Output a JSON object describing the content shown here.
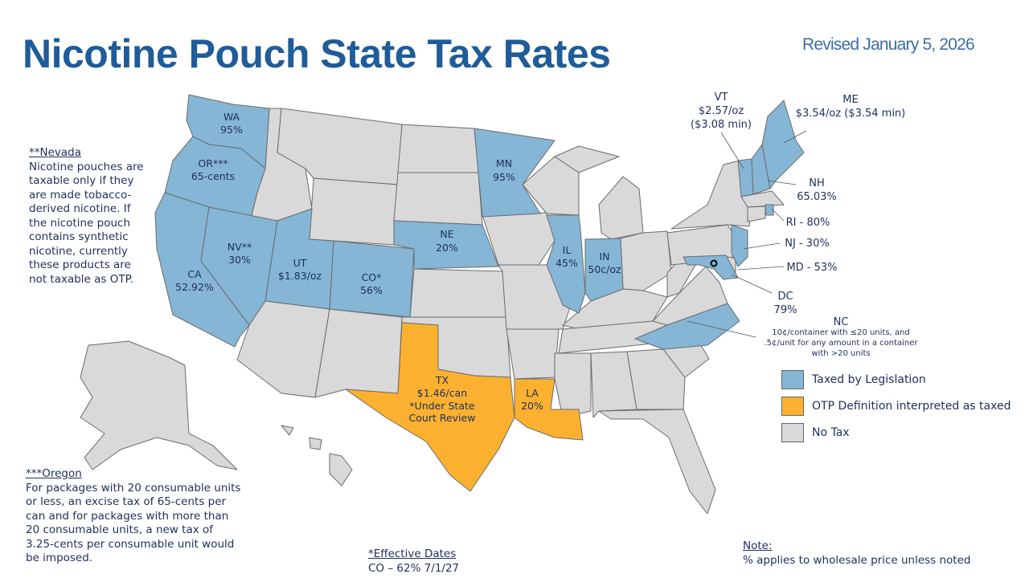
{
  "title": "Nicotine Pouch State Tax Rates",
  "revised": "Revised January 5, 2026",
  "colors": {
    "taxed": "#85b6d6",
    "otp": "#fbb12f",
    "none": "#d9d9d9",
    "title": "#1f5c99"
  },
  "states": {
    "WA": {
      "name": "WA",
      "rate": "95%"
    },
    "OR": {
      "name": "OR***",
      "rate": "65-cents"
    },
    "CA": {
      "name": "CA",
      "rate": "52.92%"
    },
    "NV": {
      "name": "NV**",
      "rate": "30%"
    },
    "UT": {
      "name": "UT",
      "rate": "$1.83/oz"
    },
    "CO": {
      "name": "CO*",
      "rate": "56%"
    },
    "NE": {
      "name": "NE",
      "rate": "20%"
    },
    "MN": {
      "name": "MN",
      "rate": "95%"
    },
    "IL": {
      "name": "IL",
      "rate": "45%"
    },
    "IN": {
      "name": "IN",
      "rate": "50c/oz"
    },
    "TX": {
      "name": "TX",
      "rate": "$1.46/can",
      "note1": "*Under State",
      "note2": "Court Review"
    },
    "LA": {
      "name": "LA",
      "rate": "20%"
    },
    "VT": {
      "name": "VT",
      "rate": "$2.57/oz",
      "min": "($3.08 min)"
    },
    "ME": {
      "name": "ME",
      "rate": "$3.54/oz ($3.54 min)"
    },
    "NH": {
      "name": "NH",
      "rate": "65.03%"
    },
    "RI": {
      "label": "RI - 80%"
    },
    "NJ": {
      "label": "NJ - 30%"
    },
    "MD": {
      "label": "MD - 53%"
    },
    "DC": {
      "name": "DC",
      "rate": "79%"
    },
    "NC": {
      "name": "NC",
      "line1": "10¢/container with ≤20 units, and",
      "line2": ".5¢/unit for any amount in a container",
      "line3": "with >20 units"
    }
  },
  "notes": {
    "nevada": {
      "heading": "**Nevada",
      "body": "Nicotine pouches are taxable only if they are made tobacco-derived nicotine. If the nicotine pouch contains synthetic nicotine, currently these products are not taxable as OTP."
    },
    "oregon": {
      "heading": "***Oregon",
      "body": "For packages with 20 consumable units or less, an excise tax of 65-cents per can and for packages with more than 20 consumable units, a new tax of 3.25-cents per consumable unit would be imposed."
    },
    "effective": {
      "heading": "*Effective Dates",
      "body": "CO – 62% 7/1/27"
    },
    "note": {
      "heading": "Note:",
      "body": "% applies to wholesale price unless noted"
    }
  },
  "legend": [
    {
      "label": "Taxed by Legislation",
      "category": "taxed"
    },
    {
      "label": "OTP Definition interpreted as taxed",
      "category": "otp"
    },
    {
      "label": "No Tax",
      "category": "none"
    }
  ]
}
